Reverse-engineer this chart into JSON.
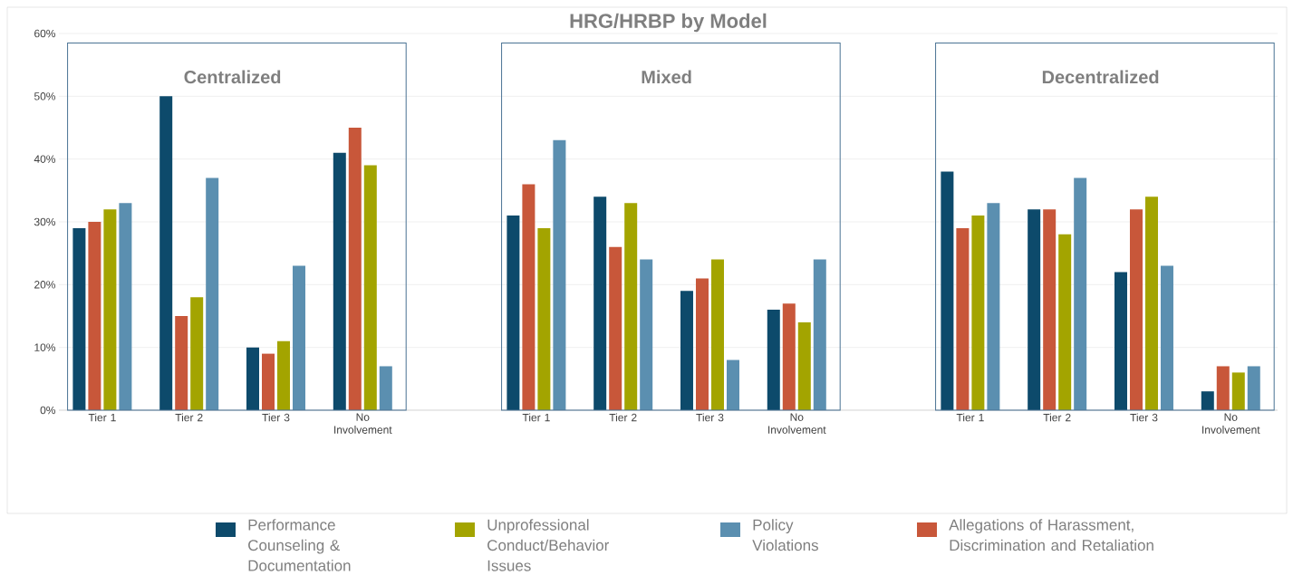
{
  "chart_data": {
    "type": "bar",
    "title": "HRG/HRBP by Model",
    "categories": [
      "Tier 1",
      "Tier 2",
      "Tier 3",
      "No Involvement",
      null,
      "Tier 1",
      "Tier 2",
      "Tier 3",
      "No Involvement",
      null,
      "Tier 1",
      "Tier 2",
      "Tier 3",
      "No Involvement"
    ],
    "series": [
      {
        "name": "Performance Counseling & Documentation",
        "color": "#0d4a6b",
        "values": [
          29,
          50,
          10,
          41,
          null,
          31,
          34,
          19,
          16,
          null,
          38,
          32,
          22,
          3
        ]
      },
      {
        "name": "Allegations of Harassment, Discrimination and Retaliation",
        "color": "#c8573a",
        "values": [
          30,
          15,
          9,
          45,
          null,
          36,
          26,
          21,
          17,
          null,
          29,
          32,
          32,
          7
        ]
      },
      {
        "name": "Unprofessional Conduct/Behavior Issues",
        "color": "#a3a400",
        "values": [
          32,
          18,
          11,
          39,
          null,
          29,
          33,
          24,
          14,
          null,
          31,
          28,
          34,
          6
        ]
      },
      {
        "name": "Policy Violations",
        "color": "#5b8fb0",
        "values": [
          33,
          37,
          23,
          7,
          null,
          43,
          24,
          8,
          24,
          null,
          33,
          37,
          23,
          7
        ]
      }
    ],
    "annotations": [
      "Centralized",
      "Mixed",
      "Decentralized"
    ],
    "ylim": [
      0,
      60
    ],
    "yticks": [
      {
        "value": 0,
        "label": "0%"
      },
      {
        "value": 10,
        "label": "10%"
      },
      {
        "value": 20,
        "label": "20%"
      },
      {
        "value": 30,
        "label": "30%"
      },
      {
        "value": 40,
        "label": "40%"
      },
      {
        "value": 50,
        "label": "50%"
      },
      {
        "value": 60,
        "label": "60%"
      }
    ],
    "grid": "y",
    "legend": "bottom"
  }
}
